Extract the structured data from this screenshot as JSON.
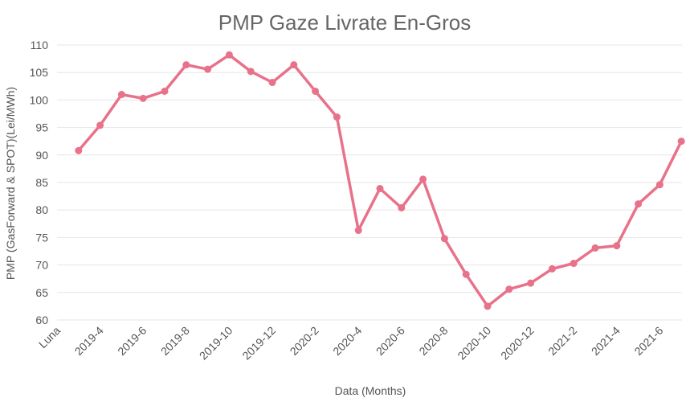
{
  "chart_data": {
    "type": "line",
    "title": "PMP Gaze Livrate En-Gros",
    "xlabel": "Data (Months)",
    "ylabel": "PMP (GasForward & SPOT)(Lei/MWh)",
    "ylim": [
      60,
      110
    ],
    "yticks": [
      60,
      65,
      70,
      75,
      80,
      85,
      90,
      95,
      100,
      105,
      110
    ],
    "x_tick_labels": [
      "Luna",
      "2019-4",
      "2019-6",
      "2019-8",
      "2019-10",
      "2019-12",
      "2020-2",
      "2020-4",
      "2020-6",
      "2020-8",
      "2020-10",
      "2020-12",
      "2021-2",
      "2021-4",
      "2021-6"
    ],
    "grid": true,
    "legend": "none",
    "line_color": "#e8728a",
    "series": [
      {
        "x": [
          "2019-3",
          "2019-4",
          "2019-5",
          "2019-6",
          "2019-7",
          "2019-8",
          "2019-9",
          "2019-10",
          "2019-11",
          "2019-12",
          "2020-1",
          "2020-2",
          "2020-3",
          "2020-4",
          "2020-5",
          "2020-6",
          "2020-7",
          "2020-8",
          "2020-9",
          "2020-10",
          "2020-11",
          "2020-12",
          "2021-1",
          "2021-2",
          "2021-3",
          "2021-4",
          "2021-5",
          "2021-6",
          "2021-7"
        ],
        "values": [
          90.8,
          95.4,
          101.0,
          100.3,
          101.6,
          106.4,
          105.6,
          108.2,
          105.2,
          103.2,
          106.4,
          101.6,
          96.9,
          76.3,
          83.9,
          80.4,
          85.6,
          74.8,
          68.3,
          62.5,
          65.6,
          66.7,
          69.3,
          70.3,
          73.1,
          73.5,
          81.1,
          84.6,
          92.5
        ]
      }
    ]
  }
}
